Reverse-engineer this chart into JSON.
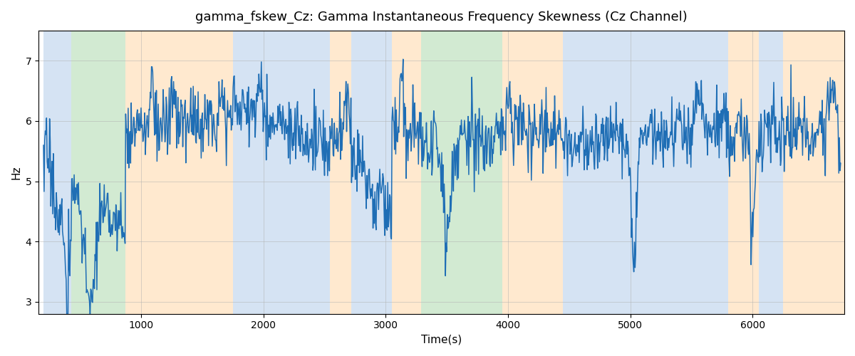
{
  "title": "gamma_fskew_Cz: Gamma Instantaneous Frequency Skewness (Cz Channel)",
  "xlabel": "Time(s)",
  "ylabel": "Hz",
  "ylim": [
    2.8,
    7.5
  ],
  "xlim": [
    160,
    6750
  ],
  "line_color": "#1f6eb5",
  "line_width": 1.1,
  "bg_bands": [
    {
      "xmin": 200,
      "xmax": 430,
      "color": "#adc8e8",
      "alpha": 0.5
    },
    {
      "xmin": 430,
      "xmax": 870,
      "color": "#90cc90",
      "alpha": 0.4
    },
    {
      "xmin": 870,
      "xmax": 1750,
      "color": "#ffd4a0",
      "alpha": 0.5
    },
    {
      "xmin": 1750,
      "xmax": 2540,
      "color": "#adc8e8",
      "alpha": 0.5
    },
    {
      "xmin": 2540,
      "xmax": 2720,
      "color": "#ffd4a0",
      "alpha": 0.5
    },
    {
      "xmin": 2720,
      "xmax": 3050,
      "color": "#adc8e8",
      "alpha": 0.5
    },
    {
      "xmin": 3050,
      "xmax": 3290,
      "color": "#ffd4a0",
      "alpha": 0.5
    },
    {
      "xmin": 3290,
      "xmax": 3950,
      "color": "#90cc90",
      "alpha": 0.4
    },
    {
      "xmin": 3950,
      "xmax": 4450,
      "color": "#ffd4a0",
      "alpha": 0.5
    },
    {
      "xmin": 4450,
      "xmax": 5800,
      "color": "#adc8e8",
      "alpha": 0.5
    },
    {
      "xmin": 5800,
      "xmax": 6050,
      "color": "#ffd4a0",
      "alpha": 0.5
    },
    {
      "xmin": 6050,
      "xmax": 6250,
      "color": "#adc8e8",
      "alpha": 0.5
    },
    {
      "xmin": 6250,
      "xmax": 6750,
      "color": "#ffd4a0",
      "alpha": 0.5
    }
  ],
  "yticks": [
    3,
    4,
    5,
    6,
    7
  ],
  "xticks": [
    1000,
    2000,
    3000,
    4000,
    5000,
    6000
  ],
  "grid_color": "#b0b0b0",
  "grid_alpha": 0.7,
  "grid_lw": 0.5
}
